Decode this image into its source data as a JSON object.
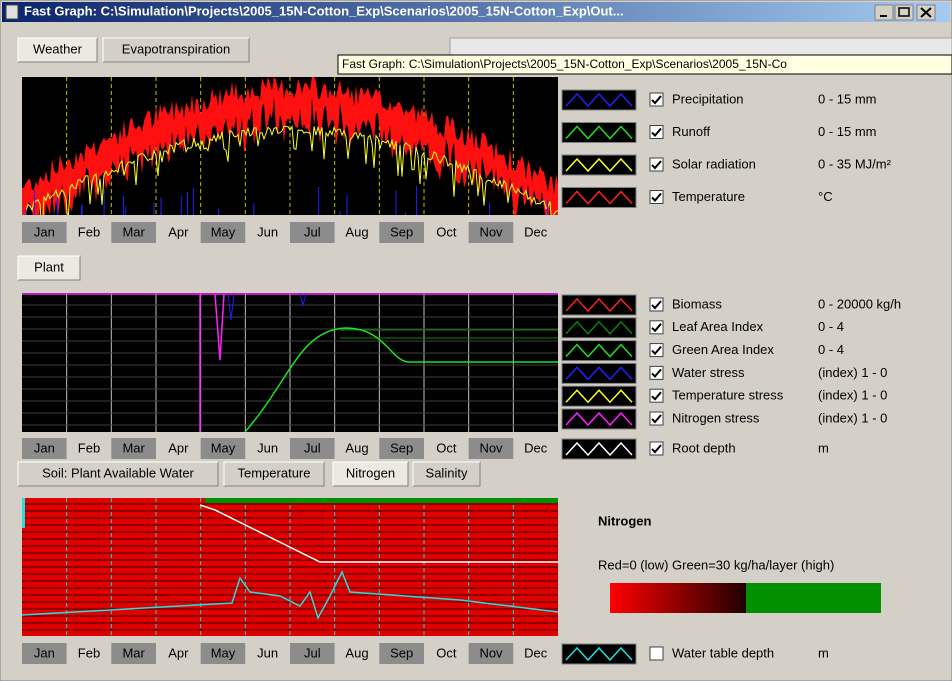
{
  "window": {
    "title": "Fast Graph: C:\\Simulation\\Projects\\2005_15N-Cotton_Exp\\Scenarios\\2005_15N-Cotton_Exp\\Out...",
    "tooltip": "Fast Graph: C:\\Simulation\\Projects\\2005_15N-Cotton_Exp\\Scenarios\\2005_15N-Co"
  },
  "weather_tabs": [
    "Weather",
    "Evapotranspiration"
  ],
  "months": [
    "Jan",
    "Feb",
    "Mar",
    "Apr",
    "May",
    "Jun",
    "Jul",
    "Aug",
    "Sep",
    "Oct",
    "Nov",
    "Dec"
  ],
  "weather_legend": [
    {
      "name": "Precipitation",
      "range": "0 - 15 mm",
      "color": "#2020ff",
      "checked": true
    },
    {
      "name": "Runoff",
      "range": "0 - 15 mm",
      "color": "#20e020",
      "checked": true
    },
    {
      "name": "Solar radiation",
      "range": "0 - 35 MJ/m²",
      "color": "#ffff20",
      "checked": true
    },
    {
      "name": "Temperature",
      "range": "°C",
      "color": "#ff2020",
      "checked": true
    }
  ],
  "plant_tab": "Plant",
  "plant_legend": [
    {
      "name": "Biomass",
      "range": "0 -  20000 kg/h",
      "color": "#ff2020",
      "checked": true
    },
    {
      "name": "Leaf Area Index",
      "range": "0 - 4",
      "color": "#108010",
      "checked": true
    },
    {
      "name": "Green Area Index",
      "range": "0 - 4",
      "color": "#20e020",
      "checked": true
    },
    {
      "name": "Water stress",
      "range": "(index) 1 - 0",
      "color": "#2020ff",
      "checked": true
    },
    {
      "name": "Temperature stress",
      "range": "(index) 1 - 0",
      "color": "#ffff20",
      "checked": true
    },
    {
      "name": "Nitrogen stress",
      "range": "(index) 1 - 0",
      "color": "#ff20ff",
      "checked": true
    },
    {
      "name": "Root depth",
      "range": "m",
      "color": "#ffffff",
      "checked": true
    }
  ],
  "soil_tabs": [
    "Soil: Plant Available Water",
    "Temperature",
    "Nitrogen",
    "Salinity"
  ],
  "nitrogen": {
    "title": "Nitrogen",
    "scale": "Red=0 (low)  Green=30 kg/ha/layer (high)"
  },
  "water_table": {
    "name": "Water table depth",
    "range": "m",
    "color": "#20e0e0",
    "checked": false
  }
}
